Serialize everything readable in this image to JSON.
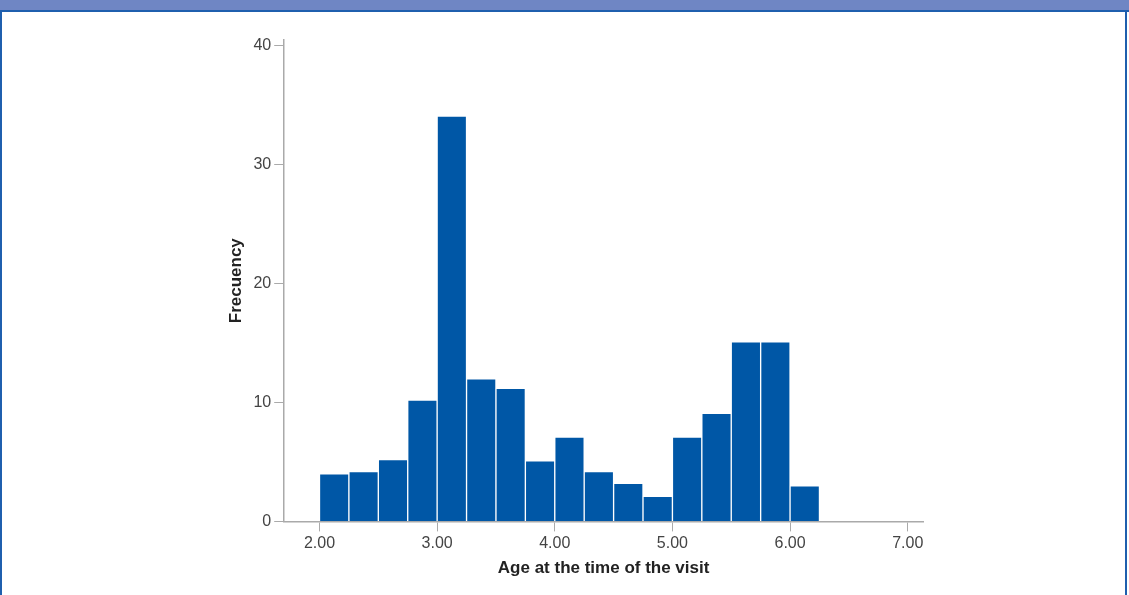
{
  "chart_data": {
    "type": "histogram",
    "xlabel": "Age at the time of the visit",
    "ylabel": "Frecuency",
    "bins": [
      2.0,
      2.25,
      2.5,
      2.75,
      3.0,
      3.25,
      3.5,
      3.75,
      4.0,
      4.25,
      4.5,
      4.75,
      5.0,
      5.25,
      5.5,
      5.75,
      6.0,
      6.25
    ],
    "values": [
      4.0,
      4.2,
      5.2,
      10.2,
      34.1,
      12.0,
      11.2,
      5.1,
      7.1,
      4.2,
      3.2,
      2.1,
      7.1,
      9.1,
      15.1,
      15.1,
      3.0
    ],
    "color": "#0057a6",
    "xlim": [
      1.7,
      7.13
    ],
    "xticks": [
      {
        "value": 2,
        "label": "2.00"
      },
      {
        "value": 3,
        "label": "3.00"
      },
      {
        "value": 4,
        "label": "4.00"
      },
      {
        "value": 5,
        "label": "5.00"
      },
      {
        "value": 6,
        "label": "6.00"
      },
      {
        "value": 7,
        "label": "7.00"
      }
    ],
    "ylim": [
      0,
      40.5
    ],
    "yticks": [
      0,
      10,
      20,
      30,
      40
    ],
    "grid": false,
    "legend": false
  }
}
